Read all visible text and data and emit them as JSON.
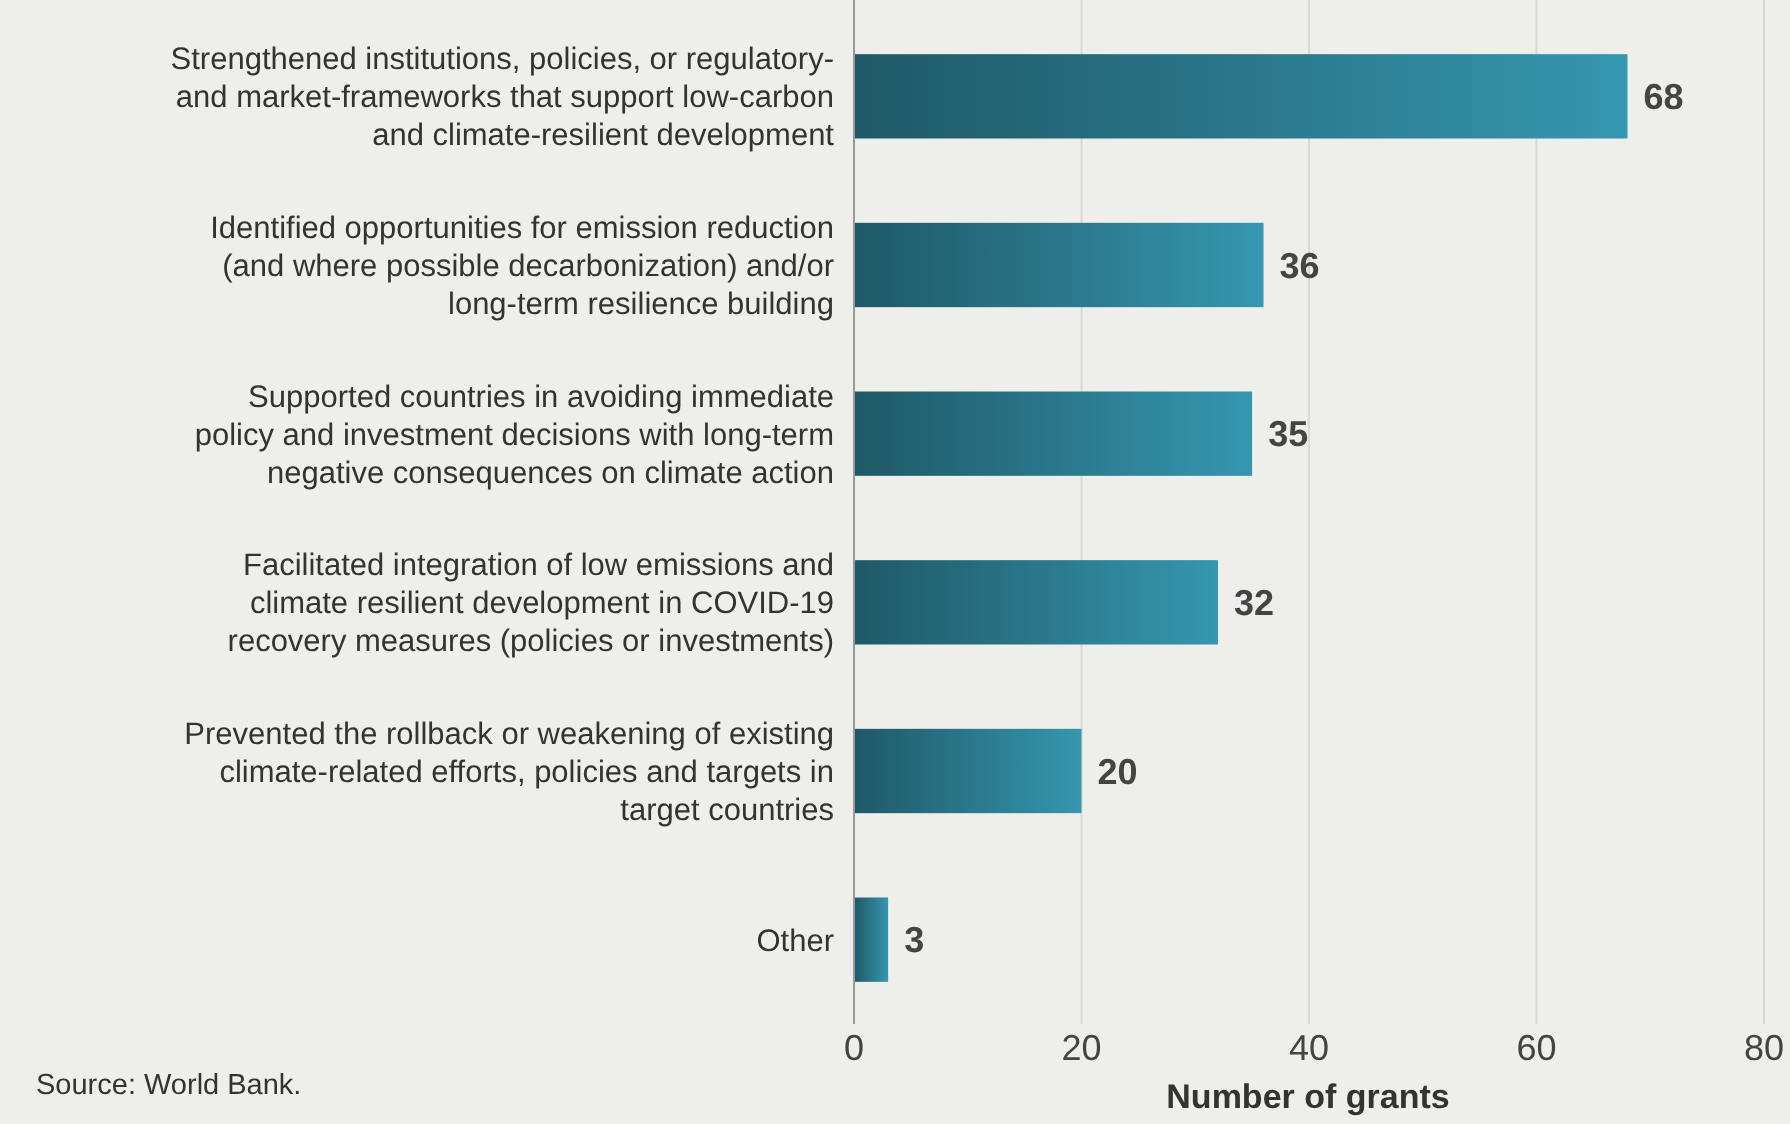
{
  "chart_data": {
    "type": "bar",
    "orientation": "horizontal",
    "xlabel": "Number of grants",
    "categories": [
      "Strengthened institutions, policies, or regulatory-\nand market-frameworks that support low-carbon\nand climate-resilient development",
      "Identified opportunities for emission reduction\n(and where possible decarbonization) and/or\nlong-term resilience building",
      "Supported countries in avoiding immediate\npolicy and investment decisions with long-term\nnegative consequences on climate action",
      "Facilitated integration of low emissions and\nclimate resilient development in COVID-19\nrecovery measures (policies or investments)",
      "Prevented the rollback or weakening of existing\nclimate-related efforts, policies and targets in\ntarget countries",
      "Other"
    ],
    "values": [
      68,
      36,
      35,
      32,
      20,
      3
    ],
    "color": "#2b7a8e",
    "data_labels": true,
    "xlim": [
      0,
      80
    ],
    "xticks": [
      0,
      20,
      40,
      60,
      80
    ],
    "grid": "x",
    "annotations": [
      "Source: World Bank."
    ]
  }
}
